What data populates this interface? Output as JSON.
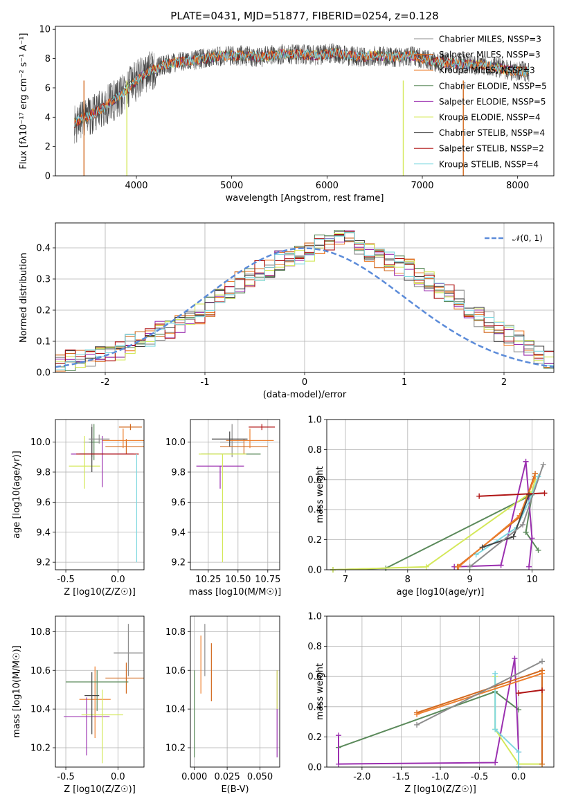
{
  "title": "PLATE=0431, MJD=51877, FIBERID=0254, z=0.128",
  "series": [
    {
      "name": "Chabrier MILES, N$_{SSP}$=3",
      "label": "Chabrier MILES, NSSP=3",
      "color": "#8c8c8c"
    },
    {
      "name": "Salpeter MILES, N$_{SSP}$=3",
      "label": "Salpeter MILES, NSSP=3",
      "color": "#d2691e"
    },
    {
      "name": "Kroupa MILES, N$_{SSP}$=3",
      "label": "Kroupa MILES, NSSP=3",
      "color": "#ee7f2d"
    },
    {
      "name": "Chabrier ELODIE, N$_{SSP}$=5",
      "label": "Chabrier ELODIE, NSSP=5",
      "color": "#5b8a5b"
    },
    {
      "name": "Salpeter ELODIE, N$_{SSP}$=5",
      "label": "Salpeter ELODIE, NSSP=5",
      "color": "#9b30b0"
    },
    {
      "name": "Kroupa ELODIE, N$_{SSP}$=4",
      "label": "Kroupa ELODIE, NSSP=4",
      "color": "#d4e85a"
    },
    {
      "name": "Chabrier STELIB, N$_{SSP}$=4",
      "label": "Chabrier STELIB, NSSP=4",
      "color": "#444444"
    },
    {
      "name": "Salpeter STELIB, N$_{SSP}$=2",
      "label": "Salpeter STELIB, NSSP=2",
      "color": "#b01515"
    },
    {
      "name": "Kroupa STELIB, N$_{SSP}$=4",
      "label": "Kroupa STELIB, NSSP=4",
      "color": "#7fd8e0"
    }
  ],
  "chart_data": [
    {
      "type": "line",
      "title": "PLATE=0431, MJD=51877, FIBERID=0254, z=0.128",
      "xlabel": "wavelength [Angstrom, rest frame]",
      "ylabel": "Flux [f$_\\lambda$10$^{-17}$ erg cm$^{-2}$ s$^{-1}$ A$^{-1}$]",
      "ylabel_text": "Flux [fλ10⁻¹⁷ erg cm⁻² s⁻¹ A⁻¹]",
      "xlim": [
        3150,
        8380
      ],
      "ylim": [
        0,
        10.2
      ],
      "xticks": [
        4000,
        5000,
        6000,
        7000,
        8000
      ],
      "yticks": [
        0,
        2,
        4,
        6,
        8,
        10
      ],
      "grid": false,
      "legend": "right",
      "spectrum_x": [
        3350,
        3500,
        3650,
        3800,
        3950,
        4100,
        4300,
        4500,
        4700,
        4900,
        5100,
        5300,
        5500,
        5700,
        5900,
        6100,
        6300,
        6500,
        6700,
        6900,
        7100,
        7300,
        7500,
        7700,
        7900,
        8100
      ],
      "spectrum_y": [
        3.6,
        4.1,
        4.6,
        5.3,
        6.2,
        7.0,
        7.6,
        7.8,
        8.0,
        8.2,
        8.2,
        8.1,
        8.3,
        8.3,
        8.2,
        8.4,
        8.1,
        8.2,
        8.1,
        8.2,
        7.8,
        7.7,
        7.6,
        7.5,
        7.2,
        7.1
      ],
      "cutoffs": [
        {
          "series": "Salpeter MILES, N$_{SSP}$=3",
          "x": 3450
        },
        {
          "series": "Kroupa ELODIE, N$_{SSP}$=4",
          "x": 3900
        },
        {
          "series": "Kroupa ELODIE, N$_{SSP}$=4",
          "x": 6800
        },
        {
          "series": "Salpeter MILES, N$_{SSP}$=3",
          "x": 7430
        }
      ]
    },
    {
      "type": "bar",
      "subtype": "step-histogram",
      "xlabel": "(data-model)/error",
      "ylabel": "Normed distribution",
      "xlim": [
        -2.5,
        2.5
      ],
      "ylim": [
        0,
        0.48
      ],
      "xticks": [
        -2,
        -1,
        0,
        1,
        2
      ],
      "yticks": [
        0.0,
        0.1,
        0.2,
        0.3,
        0.4
      ],
      "grid": true,
      "legend": "top-right",
      "legend_entry": "$\\mathcal{N}(0,1)$",
      "legend_text": "𝒩(0, 1)",
      "bin_width": 0.1,
      "bin_start": -2.5,
      "values": [
        0.03,
        0.04,
        0.04,
        0.05,
        0.06,
        0.06,
        0.07,
        0.09,
        0.1,
        0.11,
        0.13,
        0.14,
        0.15,
        0.17,
        0.19,
        0.21,
        0.24,
        0.27,
        0.29,
        0.31,
        0.33,
        0.34,
        0.36,
        0.37,
        0.38,
        0.39,
        0.41,
        0.42,
        0.44,
        0.43,
        0.4,
        0.39,
        0.37,
        0.36,
        0.34,
        0.33,
        0.31,
        0.29,
        0.27,
        0.25,
        0.23,
        0.2,
        0.18,
        0.16,
        0.13,
        0.12,
        0.1,
        0.08,
        0.06,
        0.04
      ]
    },
    {
      "type": "scatter",
      "subtype": "errorbar",
      "xlabel": "Z [log$_{10}$($Z/Z_\\odot$)]",
      "xlabel_text": "Z [log10(Z/Z☉)]",
      "ylabel": "age  [log$_{10}$($age/yr$)]",
      "ylabel_text": "age  [log10(age/yr)]",
      "xlim": [
        -0.6,
        0.25
      ],
      "ylim": [
        9.15,
        10.15
      ],
      "xticks": [
        -0.5,
        0.0
      ],
      "yticks": [
        9.2,
        9.4,
        9.6,
        9.8,
        10.0
      ],
      "grid": true,
      "points": [
        {
          "x": -0.25,
          "y": 10.0,
          "xerr": 0.08,
          "yerr_lo": 0.1,
          "yerr_hi": 0.12
        },
        {
          "x": 0.08,
          "y": 9.97,
          "xerr": 0.2,
          "yerr_lo": 0.05,
          "yerr_hi": 0.05
        },
        {
          "x": 0.05,
          "y": 10.01,
          "xerr": 0.2,
          "yerr_lo": 0.05,
          "yerr_hi": 0.08
        },
        {
          "x": -0.23,
          "y": 10.0,
          "xerr": 0.05,
          "yerr_lo": 0.12,
          "yerr_hi": 0.12
        },
        {
          "x": -0.15,
          "y": 9.92,
          "xerr": 0.3,
          "yerr_lo": 0.22,
          "yerr_hi": 0.12
        },
        {
          "x": -0.32,
          "y": 9.84,
          "xerr": 0.15,
          "yerr_lo": 0.15,
          "yerr_hi": 0.2
        },
        {
          "x": -0.25,
          "y": 9.92,
          "xerr": 0.12,
          "yerr_lo": 0.12,
          "yerr_hi": 0.18
        },
        {
          "x": -0.1,
          "y": 9.92,
          "xerr": 0.3,
          "yerr_lo": 0.0,
          "yerr_hi": 0.0
        },
        {
          "x": 0.18,
          "y": 9.92,
          "xerr": 0.0,
          "yerr_lo": 0.72,
          "yerr_hi": 0.0
        },
        {
          "x": -0.18,
          "y": 10.02,
          "xerr": 0.1,
          "yerr_lo": 0.03,
          "yerr_hi": 0.03
        },
        {
          "x": 0.12,
          "y": 10.1,
          "xerr": 0.11,
          "yerr_lo": 0.02,
          "yerr_hi": 0.02
        }
      ]
    },
    {
      "type": "scatter",
      "subtype": "errorbar",
      "xlabel": "mass [log$_{10}$($M/M_\\odot$)]",
      "xlabel_text": "mass [log10(M/M☉)]",
      "xlim": [
        10.1,
        10.85
      ],
      "ylim": [
        9.15,
        10.15
      ],
      "xticks": [
        10.25,
        10.5,
        10.75
      ],
      "yticks": [
        9.2,
        9.4,
        9.6,
        9.8,
        10.0
      ],
      "grid": true,
      "points": [
        {
          "x": 10.45,
          "y": 10.0,
          "xerr": 0.1,
          "yerr_lo": 0.1,
          "yerr_hi": 0.12
        },
        {
          "x": 10.55,
          "y": 9.97,
          "xerr": 0.2,
          "yerr_lo": 0.05,
          "yerr_hi": 0.05
        },
        {
          "x": 10.6,
          "y": 10.01,
          "xerr": 0.2,
          "yerr_lo": 0.05,
          "yerr_hi": 0.08
        },
        {
          "x": 10.44,
          "y": 9.92,
          "xerr": 0.25,
          "yerr_lo": 0.0,
          "yerr_hi": 0.0
        },
        {
          "x": 10.35,
          "y": 9.84,
          "xerr": 0.2,
          "yerr_lo": 0.15,
          "yerr_hi": 0.0
        },
        {
          "x": 10.37,
          "y": 9.92,
          "xerr": 0.2,
          "yerr_lo": 0.72,
          "yerr_hi": 0.0
        },
        {
          "x": 10.43,
          "y": 10.02,
          "xerr": 0.15,
          "yerr_lo": 0.05,
          "yerr_hi": 0.05
        },
        {
          "x": 10.7,
          "y": 10.1,
          "xerr": 0.11,
          "yerr_lo": 0.02,
          "yerr_hi": 0.02
        }
      ]
    },
    {
      "type": "line",
      "xlabel": "age  [log$_{10}$($age/yr$)]",
      "xlabel_text": "age  [log10(age/yr)]",
      "ylabel": "mass weight",
      "xlim": [
        6.7,
        10.35
      ],
      "ylim": [
        0,
        1.0
      ],
      "xticks": [
        7,
        8,
        9,
        10
      ],
      "yticks": [
        0.0,
        0.2,
        0.4,
        0.6,
        0.8,
        1.0
      ],
      "grid": true,
      "lines": [
        {
          "series": "Chabrier ELODIE, N$_{SSP}$=5",
          "x": [
            6.8,
            7.65,
            10.0,
            9.9,
            10.1
          ],
          "y": [
            0.0,
            0.01,
            0.5,
            0.25,
            0.13
          ]
        },
        {
          "series": "Kroupa ELODIE, N$_{SSP}$=4",
          "x": [
            6.8,
            8.3,
            10.0,
            10.05
          ],
          "y": [
            0.0,
            0.02,
            0.52,
            0.6
          ]
        },
        {
          "series": "Salpeter ELODIE, N$_{SSP}$=5",
          "x": [
            8.75,
            9.5,
            9.9,
            10.0,
            9.95
          ],
          "y": [
            0.02,
            0.03,
            0.72,
            0.21,
            0.02
          ]
        },
        {
          "series": "Salpeter MILES, N$_{SSP}$=3",
          "x": [
            8.8,
            9.8,
            10.05
          ],
          "y": [
            0.02,
            0.35,
            0.64
          ]
        },
        {
          "series": "Kroupa MILES, N$_{SSP}$=3",
          "x": [
            8.82,
            9.8,
            10.05
          ],
          "y": [
            0.02,
            0.36,
            0.62
          ]
        },
        {
          "series": "Kroupa STELIB, N$_{SSP}$=4",
          "x": [
            9.1,
            9.75,
            10.0,
            10.1
          ],
          "y": [
            0.1,
            0.28,
            0.5,
            0.62
          ]
        },
        {
          "series": "Chabrier STELIB, N$_{SSP}$=4",
          "x": [
            9.2,
            9.7,
            9.95
          ],
          "y": [
            0.15,
            0.22,
            0.5
          ]
        },
        {
          "series": "Salpeter STELIB, N$_{SSP}$=2",
          "x": [
            9.15,
            10.2
          ],
          "y": [
            0.49,
            0.51
          ]
        },
        {
          "series": "Chabrier MILES, N$_{SSP}$=3",
          "x": [
            9.0,
            9.85,
            10.18
          ],
          "y": [
            0.02,
            0.3,
            0.7
          ]
        }
      ]
    },
    {
      "type": "scatter",
      "subtype": "errorbar",
      "xlabel": "Z [log$_{10}$($Z/Z_\\odot$)]",
      "xlabel_text": "Z [log10(Z/Z☉)]",
      "ylabel": "mass [log$_{10}$($M/M_\\odot$)]",
      "ylabel_text": "mass [log10(M/M☉)]",
      "xlim": [
        -0.6,
        0.25
      ],
      "ylim": [
        10.1,
        10.88
      ],
      "xticks": [
        -0.5,
        0.0
      ],
      "yticks": [
        10.2,
        10.4,
        10.6,
        10.8
      ],
      "grid": true,
      "points": [
        {
          "x": 0.1,
          "y": 10.69,
          "xerr": 0.14,
          "yerr_lo": 0.12,
          "yerr_hi": 0.15
        },
        {
          "x": 0.08,
          "y": 10.56,
          "xerr": 0.2,
          "yerr_lo": 0.08,
          "yerr_hi": 0.08
        },
        {
          "x": -0.22,
          "y": 10.45,
          "xerr": 0.15,
          "yerr_lo": 0.2,
          "yerr_hi": 0.17
        },
        {
          "x": -0.2,
          "y": 10.54,
          "xerr": 0.3,
          "yerr_lo": 0.15,
          "yerr_hi": 0.06
        },
        {
          "x": -0.3,
          "y": 10.36,
          "xerr": 0.22,
          "yerr_lo": 0.2,
          "yerr_hi": 0.1
        },
        {
          "x": -0.15,
          "y": 10.37,
          "xerr": 0.2,
          "yerr_lo": 0.25,
          "yerr_hi": 0.13
        },
        {
          "x": -0.25,
          "y": 10.47,
          "xerr": 0.07,
          "yerr_lo": 0.2,
          "yerr_hi": 0.12
        }
      ]
    },
    {
      "type": "scatter",
      "subtype": "errorbar",
      "xlabel": "E(B-V)",
      "xlim": [
        -0.003,
        0.065
      ],
      "ylim": [
        10.1,
        10.88
      ],
      "xticks": [
        0.0,
        0.025,
        0.05
      ],
      "yticks": [
        10.2,
        10.4,
        10.6,
        10.8
      ],
      "grid": true,
      "points": [
        {
          "x": 0.008,
          "y": 10.69,
          "yerr_lo": 0.12,
          "yerr_hi": 0.15
        },
        {
          "x": 0.013,
          "y": 10.59,
          "yerr_lo": 0.15,
          "yerr_hi": 0.15
        },
        {
          "x": 0.005,
          "y": 10.63,
          "yerr_lo": 0.15,
          "yerr_hi": 0.15
        },
        {
          "x": 0.0,
          "y": 10.4,
          "yerr_lo": 0.25,
          "yerr_hi": 0.2
        },
        {
          "x": 0.063,
          "y": 10.4,
          "yerr_lo": 0.25,
          "yerr_hi": 0.2
        },
        {
          "x": 0.063,
          "y": 10.5,
          "yerr_lo": 0.1,
          "yerr_hi": 0.1
        }
      ]
    },
    {
      "type": "line",
      "xlabel": "Z [log$_{10}$($Z/Z_\\odot$)]",
      "xlabel_text": "Z [log10(Z/Z☉)]",
      "ylabel": "mass weight",
      "xlim": [
        -2.45,
        0.45
      ],
      "ylim": [
        0,
        1.0
      ],
      "xticks": [
        -2.0,
        -1.5,
        -1.0,
        -0.5,
        0.0
      ],
      "yticks": [
        0.0,
        0.2,
        0.4,
        0.6,
        0.8,
        1.0
      ],
      "grid": true,
      "lines": [
        {
          "series": "Chabrier ELODIE, N$_{SSP}$=5",
          "x": [
            -2.3,
            -0.3,
            0.0
          ],
          "y": [
            0.13,
            0.5,
            0.38
          ]
        },
        {
          "series": "Salpeter ELODIE, N$_{SSP}$=5",
          "x": [
            -2.3,
            -2.3,
            -0.3,
            -0.05,
            0.0
          ],
          "y": [
            0.21,
            0.02,
            0.03,
            0.72,
            0.1
          ]
        },
        {
          "series": "Kroupa ELODIE, N$_{SSP}$=4",
          "x": [
            -0.3,
            -0.3,
            0.0,
            0.3
          ],
          "y": [
            0.6,
            0.25,
            0.02,
            0.02
          ]
        },
        {
          "series": "Kroupa STELIB, N$_{SSP}$=4",
          "x": [
            -0.3,
            -0.3,
            0.0,
            0.0
          ],
          "y": [
            0.62,
            0.25,
            0.1,
            0.0
          ]
        },
        {
          "series": "Salpeter MILES, N$_{SSP}$=3",
          "x": [
            -1.3,
            0.3,
            0.3
          ],
          "y": [
            0.36,
            0.64,
            0.02
          ]
        },
        {
          "series": "Kroupa MILES, N$_{SSP}$=3",
          "x": [
            -1.3,
            0.3
          ],
          "y": [
            0.35,
            0.62
          ]
        },
        {
          "series": "Chabrier MILES, N$_{SSP}$=3",
          "x": [
            -1.3,
            0.3
          ],
          "y": [
            0.28,
            0.7
          ]
        },
        {
          "series": "Salpeter STELIB, N$_{SSP}$=2",
          "x": [
            0.0,
            0.3
          ],
          "y": [
            0.49,
            0.51
          ]
        }
      ]
    }
  ]
}
